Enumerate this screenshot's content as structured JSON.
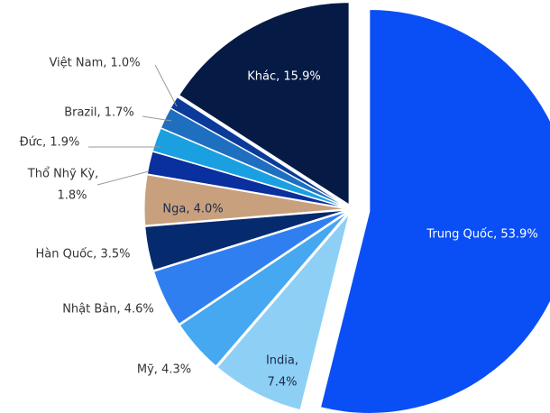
{
  "chart_data": {
    "type": "pie",
    "labels": [
      [
        "Trung Quốc, 53.9%"
      ],
      [
        "India,",
        "7.4%"
      ],
      [
        "Mỹ, 4.3%"
      ],
      [
        "Nhật Bản, 4.6%"
      ],
      [
        "Hàn Quốc, 3.5%"
      ],
      [
        "Nga, 4.0%"
      ],
      [
        "Thổ Nhỹ Kỳ,",
        "1.8%"
      ],
      [
        "Đức, 1.9%"
      ],
      [
        "Brazil, 1.7%"
      ],
      [
        "Việt Nam, 1.0%"
      ],
      [
        "Khác, 15.9%"
      ]
    ],
    "values": [
      53.9,
      7.4,
      4.3,
      4.6,
      3.5,
      4.0,
      1.8,
      1.9,
      1.7,
      1.0,
      15.9
    ],
    "colors": [
      "#0a4ff5",
      "#8ecff5",
      "#45a8f0",
      "#2f7ff0",
      "#062a6e",
      "#c8a07e",
      "#0a2f9e",
      "#1aa0e0",
      "#1f6fc0",
      "#0a3a9a",
      "#051a45"
    ]
  }
}
